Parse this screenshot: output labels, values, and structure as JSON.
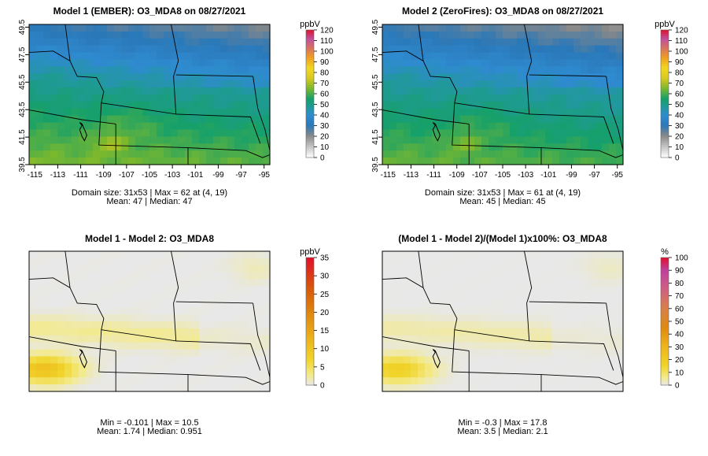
{
  "chart_data": [
    {
      "type": "heatmap",
      "title": "Model 1 (EMBER): O3_MDA8 on 08/27/2021",
      "variable": "O3_MDA8",
      "units_label": "ppbV",
      "color_scale": "ppb",
      "legend_ticks": [
        0,
        10,
        20,
        30,
        40,
        50,
        60,
        70,
        80,
        90,
        100,
        110,
        120
      ],
      "xlim": [
        -115.5,
        -94.5
      ],
      "ylim": [
        39.5,
        49.7
      ],
      "x_ticks": [
        -115,
        -113,
        -111,
        -109,
        -107,
        -105,
        -103,
        -101,
        -99,
        -97,
        -95
      ],
      "y_ticks": [
        39.5,
        41.5,
        43.5,
        45.5,
        47.5,
        49.5
      ],
      "grid_rows": 20,
      "grid_cols": 34,
      "field": {
        "base": 53,
        "lat_slope": -2.6,
        "north_lat": 46.0,
        "east_decline": 6.0,
        "hotspot": 9
      },
      "show_axes": true,
      "stats": [
        "Domain size: 31x53 | Max = 62 at (4, 19)",
        "Mean: 47 |  Median: 47"
      ]
    },
    {
      "type": "heatmap",
      "title": "Model 2 (ZeroFires): O3_MDA8 on 08/27/2021",
      "variable": "O3_MDA8",
      "units_label": "ppbV",
      "color_scale": "ppb",
      "legend_ticks": [
        0,
        10,
        20,
        30,
        40,
        50,
        60,
        70,
        80,
        90,
        100,
        110,
        120
      ],
      "xlim": [
        -115.5,
        -94.5
      ],
      "ylim": [
        39.5,
        49.7
      ],
      "x_ticks": [
        -115,
        -113,
        -111,
        -109,
        -107,
        -105,
        -103,
        -101,
        -99,
        -97,
        -95
      ],
      "y_ticks": [
        39.5,
        41.5,
        43.5,
        45.5,
        47.5,
        49.5
      ],
      "grid_rows": 20,
      "grid_cols": 34,
      "field": {
        "base": 51,
        "lat_slope": -2.6,
        "north_lat": 46.0,
        "east_decline": 6.0,
        "hotspot": 7
      },
      "show_axes": true,
      "stats": [
        "Domain size: 31x53 | Max = 61 at (4, 19)",
        "Mean: 45 |  Median: 45"
      ]
    },
    {
      "type": "heatmap",
      "title": "Model 1 - Model 2: O3_MDA8",
      "variable": "O3_MDA8 difference",
      "units_label": "ppbV",
      "color_scale": "diff",
      "legend_ticks": [
        0,
        5,
        10,
        15,
        20,
        25,
        30,
        35
      ],
      "xlim": [
        -115.5,
        -94.5
      ],
      "ylim": [
        39.5,
        49.7
      ],
      "grid_rows": 20,
      "grid_cols": 34,
      "field": {
        "sw_peak": 10.5,
        "band": 2.5
      },
      "show_axes": false,
      "stats": [
        "Min = -0.101 | Max = 10.5",
        "Mean: 1.74 |  Median: 0.951"
      ]
    },
    {
      "type": "heatmap",
      "title": "(Model 1 - Model 2)/(Model 1)x100%: O3_MDA8",
      "variable": "O3_MDA8 percent difference",
      "units_label": "%",
      "color_scale": "pct",
      "legend_ticks": [
        0,
        10,
        20,
        30,
        40,
        50,
        60,
        70,
        80,
        90,
        100
      ],
      "xlim": [
        -115.5,
        -94.5
      ],
      "ylim": [
        39.5,
        49.7
      ],
      "grid_rows": 20,
      "grid_cols": 34,
      "field": {
        "sw_peak": 17.8,
        "band": 4.0
      },
      "show_axes": false,
      "stats": [
        "Min = -0.3 | Max = 17.8",
        "Mean: 3.5 |  Median: 2.1"
      ]
    }
  ]
}
